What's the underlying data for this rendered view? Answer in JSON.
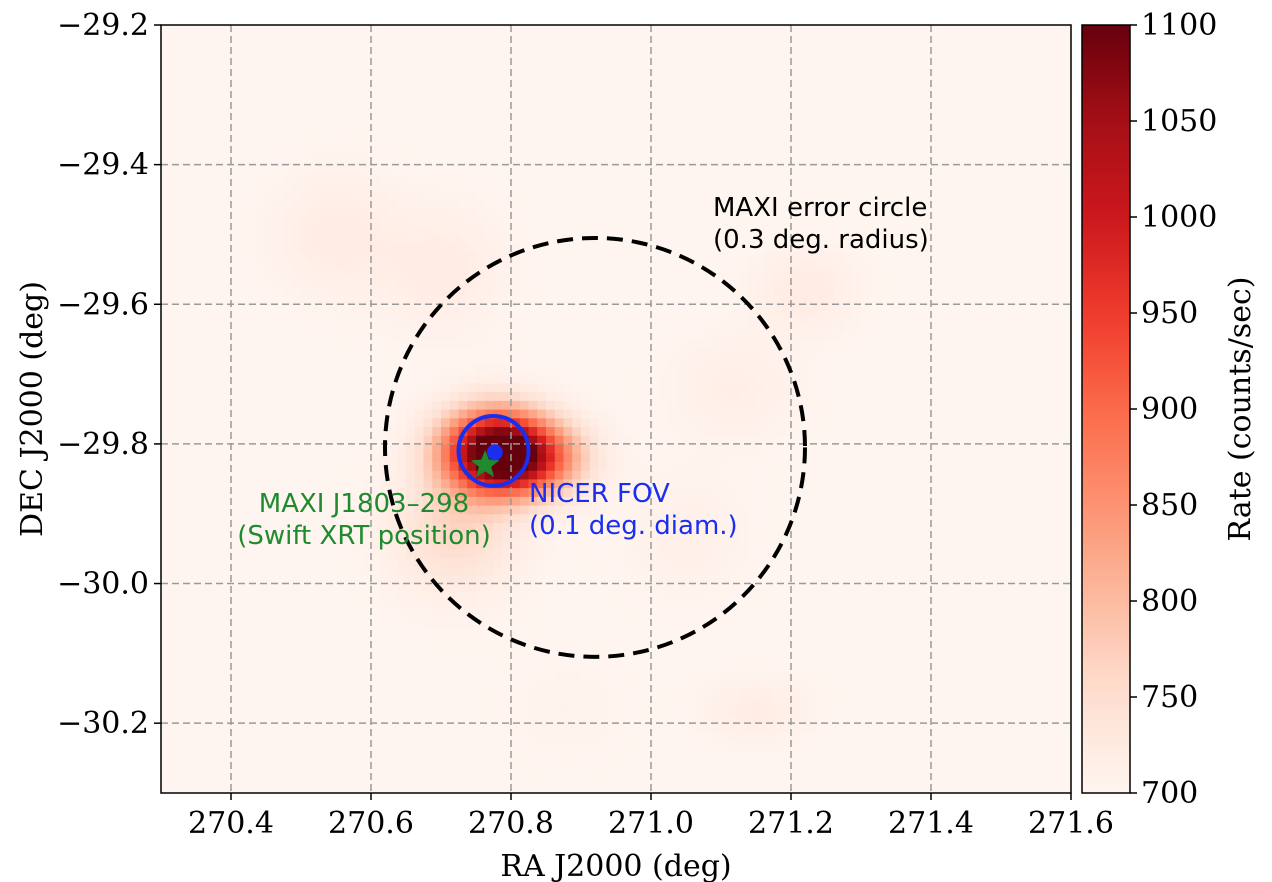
{
  "chart_data": {
    "type": "heatmap",
    "title": "",
    "xlabel": "RA J2000 (deg)",
    "ylabel": "DEC J2000 (deg)",
    "xlim": [
      270.3,
      271.6
    ],
    "ylim": [
      -30.3,
      -29.2
    ],
    "x_ticks": [
      {
        "value": 270.4,
        "label": "270.4"
      },
      {
        "value": 270.6,
        "label": "270.6"
      },
      {
        "value": 270.8,
        "label": "270.8"
      },
      {
        "value": 271.0,
        "label": "271.0"
      },
      {
        "value": 271.2,
        "label": "271.2"
      },
      {
        "value": 271.4,
        "label": "271.4"
      },
      {
        "value": 271.6,
        "label": "271.6"
      }
    ],
    "y_ticks": [
      {
        "value": -29.2,
        "label": "−29.2"
      },
      {
        "value": -29.4,
        "label": "−29.4"
      },
      {
        "value": -29.6,
        "label": "−29.6"
      },
      {
        "value": -29.8,
        "label": "−29.8"
      },
      {
        "value": -30.0,
        "label": "−30.0"
      },
      {
        "value": -30.2,
        "label": "−30.2"
      }
    ],
    "grid": true,
    "colormap": "Reds",
    "colorbar": {
      "label": "Rate (counts/sec)",
      "range": [
        700,
        1100
      ],
      "ticks": [
        {
          "value": 700,
          "label": "700"
        },
        {
          "value": 750,
          "label": "750"
        },
        {
          "value": 800,
          "label": "800"
        },
        {
          "value": 850,
          "label": "850"
        },
        {
          "value": 900,
          "label": "900"
        },
        {
          "value": 950,
          "label": "950"
        },
        {
          "value": 1000,
          "label": "1000"
        },
        {
          "value": 1050,
          "label": "1050"
        },
        {
          "value": 1100,
          "label": "1100"
        }
      ]
    },
    "baseline_rate": 700,
    "sources": [
      {
        "ra": 270.775,
        "dec": -29.81,
        "peak": 1100,
        "sigma_ra": 0.05,
        "sigma_dec": 0.04
      },
      {
        "ra": 270.83,
        "dec": -29.82,
        "peak": 900,
        "sigma_ra": 0.05,
        "sigma_dec": 0.035
      },
      {
        "ra": 270.72,
        "dec": -29.92,
        "peak": 760,
        "sigma_ra": 0.06,
        "sigma_dec": 0.06
      },
      {
        "ra": 270.55,
        "dec": -29.5,
        "peak": 722,
        "sigma_ra": 0.06,
        "sigma_dec": 0.06
      },
      {
        "ra": 270.7,
        "dec": -29.55,
        "peak": 722,
        "sigma_ra": 0.06,
        "sigma_dec": 0.06
      },
      {
        "ra": 271.22,
        "dec": -29.58,
        "peak": 724,
        "sigma_ra": 0.05,
        "sigma_dec": 0.04
      },
      {
        "ra": 271.12,
        "dec": -29.72,
        "peak": 716,
        "sigma_ra": 0.06,
        "sigma_dec": 0.05
      },
      {
        "ra": 271.05,
        "dec": -29.93,
        "peak": 712,
        "sigma_ra": 0.06,
        "sigma_dec": 0.06
      },
      {
        "ra": 271.15,
        "dec": -30.18,
        "peak": 720,
        "sigma_ra": 0.05,
        "sigma_dec": 0.03
      },
      {
        "ra": 270.88,
        "dec": -30.18,
        "peak": 706,
        "sigma_ra": 0.06,
        "sigma_dec": 0.05
      }
    ],
    "overlays": {
      "maxi_circle": {
        "center_ra": 270.92,
        "center_dec": -29.805,
        "radius_deg": 0.3,
        "color": "#000000",
        "style": "dashed",
        "label_lines": [
          "MAXI error circle",
          "(0.3 deg. radius)"
        ]
      },
      "nicer_fov": {
        "center_ra": 270.775,
        "center_dec": -29.81,
        "radius_deg": 0.05,
        "color": "#1a2ef0",
        "label_lines": [
          "NICER FOV",
          "(0.1 deg. diam.)"
        ]
      },
      "nicer_point": {
        "ra": 270.777,
        "dec": -29.812,
        "color": "#1a2ef0"
      },
      "swift_position": {
        "ra": 270.763,
        "dec": -29.83,
        "color": "#1f8a2e",
        "marker": "star",
        "label_lines": [
          "MAXI J1803–298",
          "(Swift XRT position)"
        ]
      }
    }
  }
}
